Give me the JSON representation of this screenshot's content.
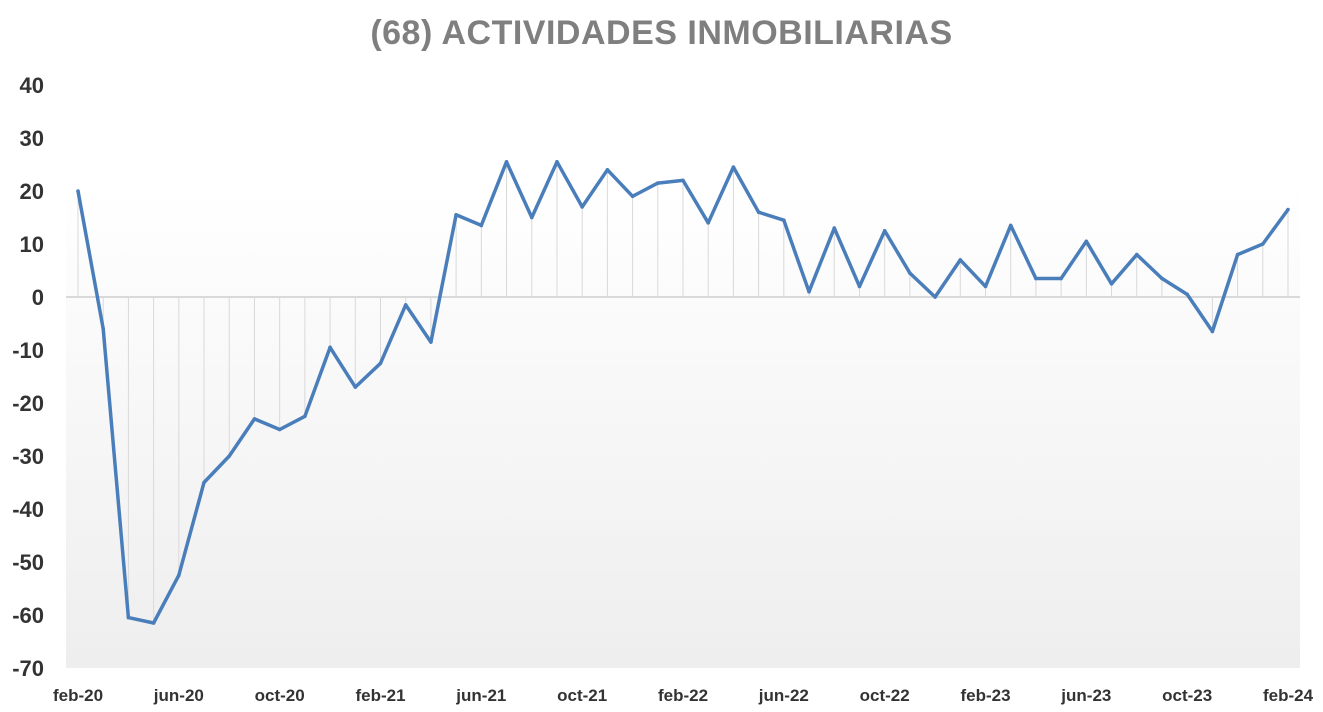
{
  "chart_data": {
    "type": "line",
    "title": "(68) ACTIVIDADES INMOBILIARIAS",
    "xlabel": "",
    "ylabel": "",
    "ylim": [
      -70,
      40
    ],
    "yticks": [
      "40",
      "30",
      "20",
      "10",
      "0",
      "-10",
      "-20",
      "-30",
      "-40",
      "-50",
      "-60",
      "-70"
    ],
    "x_tick_labels": [
      "feb-20",
      "jun-20",
      "oct-20",
      "feb-21",
      "jun-21",
      "oct-21",
      "feb-22",
      "jun-22",
      "oct-22",
      "feb-23",
      "jun-23",
      "oct-23",
      "feb-24"
    ],
    "x": [
      "feb-20",
      "mar-20",
      "apr-20",
      "may-20",
      "jun-20",
      "jul-20",
      "aug-20",
      "sep-20",
      "oct-20",
      "nov-20",
      "dec-20",
      "jan-21",
      "feb-21",
      "mar-21",
      "apr-21",
      "may-21",
      "jun-21",
      "jul-21",
      "aug-21",
      "sep-21",
      "oct-21",
      "nov-21",
      "dec-21",
      "jan-22",
      "feb-22",
      "mar-22",
      "apr-22",
      "may-22",
      "jun-22",
      "jul-22",
      "aug-22",
      "sep-22",
      "oct-22",
      "nov-22",
      "dec-22",
      "jan-23",
      "feb-23",
      "mar-23",
      "apr-23",
      "may-23",
      "jun-23",
      "jul-23",
      "aug-23",
      "sep-23",
      "oct-23",
      "nov-23",
      "dec-23",
      "jan-24",
      "feb-24"
    ],
    "series": [
      {
        "values": [
          20,
          -6,
          -60.5,
          -61.5,
          -52.5,
          -35,
          -30,
          -23,
          -25,
          -22.5,
          -9.5,
          -17,
          -12.5,
          -1.5,
          -8.5,
          15.5,
          13.5,
          25.5,
          15,
          25.5,
          17,
          24,
          19,
          21.5,
          22,
          14,
          24.5,
          16,
          14.5,
          1,
          13,
          2,
          12.5,
          4.5,
          0,
          7,
          2,
          13.5,
          3.5,
          3.5,
          10.5,
          2.5,
          8,
          3.5,
          0.5,
          -6.5,
          8,
          10,
          16.5
        ],
        "color": "#4a7ebb"
      }
    ],
    "grid": false,
    "drop_lines": true,
    "legend": "none",
    "colors": {
      "line": "#4a7ebb",
      "title": "#7f7f7f",
      "axis_text": "#333333",
      "drop_lines": "#d9d9d9",
      "zero_axis": "#d9d9d9"
    }
  }
}
